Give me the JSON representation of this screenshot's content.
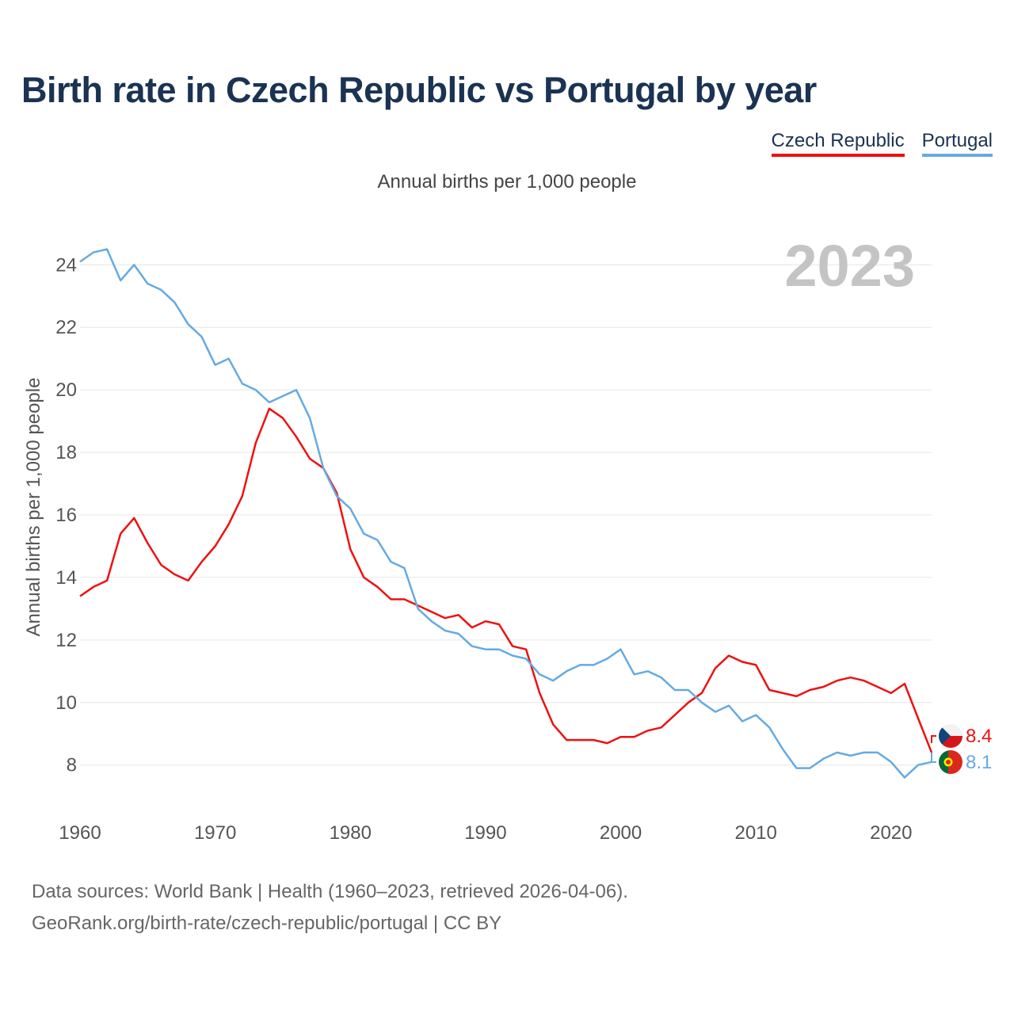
{
  "title": "Birth rate in Czech Republic vs Portugal by year",
  "subtitle": "Annual births per 1,000 people",
  "legend": [
    {
      "label": "Czech Republic",
      "color": "#ee1111"
    },
    {
      "label": "Portugal",
      "color": "#66aae2"
    }
  ],
  "year_overlay": "2023",
  "source": {
    "line1": "Data sources: World Bank | Health (1960–2023, retrieved 2026-04-06).",
    "line2": "GeoRank.org/birth-rate/czech-republic/portugal | CC BY"
  },
  "chart_data": {
    "type": "line",
    "title": "Birth rate in Czech Republic vs Portugal by year",
    "ylabel": "Annual births per 1,000 people",
    "xlabel": "",
    "xlim": [
      1960,
      2023
    ],
    "ylim": [
      6.7,
      25.3
    ],
    "x_ticks": [
      1960,
      1970,
      1980,
      1990,
      2000,
      2010,
      2020
    ],
    "y_ticks": [
      8,
      10,
      12,
      14,
      16,
      18,
      20,
      22,
      24
    ],
    "grid": true,
    "x": [
      1960,
      1961,
      1962,
      1963,
      1964,
      1965,
      1966,
      1967,
      1968,
      1969,
      1970,
      1971,
      1972,
      1973,
      1974,
      1975,
      1976,
      1977,
      1978,
      1979,
      1980,
      1981,
      1982,
      1983,
      1984,
      1985,
      1986,
      1987,
      1988,
      1989,
      1990,
      1991,
      1992,
      1993,
      1994,
      1995,
      1996,
      1997,
      1998,
      1999,
      2000,
      2001,
      2002,
      2003,
      2004,
      2005,
      2006,
      2007,
      2008,
      2009,
      2010,
      2011,
      2012,
      2013,
      2014,
      2015,
      2016,
      2017,
      2018,
      2019,
      2020,
      2021,
      2022,
      2023
    ],
    "series": [
      {
        "name": "Czech Republic",
        "color": "#ee1111",
        "end_label": "8.4",
        "values": [
          13.4,
          13.7,
          13.9,
          15.4,
          15.9,
          15.1,
          14.4,
          14.1,
          13.9,
          14.5,
          15.0,
          15.7,
          16.6,
          18.3,
          19.4,
          19.1,
          18.5,
          17.8,
          17.5,
          16.7,
          14.9,
          14.0,
          13.7,
          13.3,
          13.3,
          13.1,
          12.9,
          12.7,
          12.8,
          12.4,
          12.6,
          12.5,
          11.8,
          11.7,
          10.3,
          9.3,
          8.8,
          8.8,
          8.8,
          8.7,
          8.9,
          8.9,
          9.1,
          9.2,
          9.6,
          10.0,
          10.3,
          11.1,
          11.5,
          11.3,
          11.2,
          10.4,
          10.3,
          10.2,
          10.4,
          10.5,
          10.7,
          10.8,
          10.7,
          10.5,
          10.3,
          10.6,
          9.5,
          8.4
        ]
      },
      {
        "name": "Portugal",
        "color": "#66aae2",
        "end_label": "8.1",
        "values": [
          24.1,
          24.4,
          24.5,
          23.5,
          24.0,
          23.4,
          23.2,
          22.8,
          22.1,
          21.7,
          20.8,
          21.0,
          20.2,
          20.0,
          19.6,
          19.8,
          20.0,
          19.1,
          17.5,
          16.6,
          16.2,
          15.4,
          15.2,
          14.5,
          14.3,
          13.0,
          12.6,
          12.3,
          12.2,
          11.8,
          11.7,
          11.7,
          11.5,
          11.4,
          10.9,
          10.7,
          11.0,
          11.2,
          11.2,
          11.4,
          11.7,
          10.9,
          11.0,
          10.8,
          10.4,
          10.4,
          10.0,
          9.7,
          9.9,
          9.4,
          9.6,
          9.2,
          8.5,
          7.9,
          7.9,
          8.2,
          8.4,
          8.3,
          8.4,
          8.4,
          8.1,
          7.6,
          8.0,
          8.1
        ]
      }
    ]
  }
}
